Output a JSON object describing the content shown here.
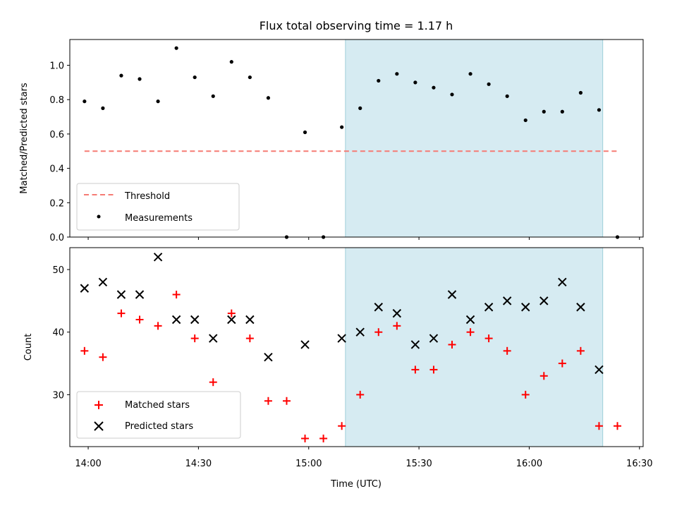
{
  "chart_data": [
    {
      "type": "scatter",
      "title": "Flux total observing time = 1.17 h",
      "xlabel": "",
      "ylabel": "Matched/Predicted stars",
      "xlim": [
        "13:55",
        "16:31"
      ],
      "ylim": [
        0,
        1.15
      ],
      "yticks": [
        "0.0",
        "0.2",
        "0.4",
        "0.6",
        "0.8",
        "1.0"
      ],
      "yticks_values": [
        0,
        0.2,
        0.4,
        0.6,
        0.8,
        1.0
      ],
      "legend_position": "lower-left",
      "shaded_region": {
        "start": "15:10",
        "end": "16:20",
        "color": "#add8e6"
      },
      "threshold": {
        "name": "Threshold",
        "value": 0.5,
        "x_start": "13:59",
        "x_end": "16:24",
        "color": "#f57b74"
      },
      "series": [
        {
          "name": "Measurements",
          "marker": "dot",
          "color": "#000000",
          "x": [
            "13:59",
            "14:04",
            "14:09",
            "14:14",
            "14:19",
            "14:24",
            "14:29",
            "14:34",
            "14:39",
            "14:44",
            "14:49",
            "14:54",
            "14:59",
            "15:04",
            "15:09",
            "15:14",
            "15:19",
            "15:24",
            "15:29",
            "15:34",
            "15:39",
            "15:44",
            "15:49",
            "15:54",
            "15:59",
            "16:04",
            "16:09",
            "16:14",
            "16:19",
            "16:24"
          ],
          "y": [
            0.79,
            0.75,
            0.94,
            0.92,
            0.79,
            1.1,
            0.93,
            0.82,
            1.02,
            0.93,
            0.81,
            0.0,
            0.61,
            0.0,
            0.64,
            0.75,
            0.91,
            0.95,
            0.9,
            0.87,
            0.83,
            0.95,
            0.89,
            0.82,
            0.68,
            0.73,
            0.73,
            0.84,
            0.74,
            0.0
          ]
        }
      ]
    },
    {
      "type": "scatter",
      "title": "",
      "xlabel": "Time (UTC)",
      "ylabel": "Count",
      "xlim": [
        "13:55",
        "16:31"
      ],
      "ylim": [
        21.7,
        53.5
      ],
      "xticks": [
        "14:00",
        "14:30",
        "15:00",
        "15:30",
        "16:00",
        "16:30"
      ],
      "yticks": [
        "30",
        "40",
        "50"
      ],
      "yticks_values": [
        30,
        40,
        50
      ],
      "legend_position": "lower-left",
      "shaded_region": {
        "start": "15:10",
        "end": "16:20",
        "color": "#add8e6"
      },
      "series": [
        {
          "name": "Matched stars",
          "marker": "plus",
          "color": "#ff0000",
          "x": [
            "13:59",
            "14:04",
            "14:09",
            "14:14",
            "14:19",
            "14:24",
            "14:29",
            "14:34",
            "14:39",
            "14:44",
            "14:49",
            "14:54",
            "14:59",
            "15:04",
            "15:09",
            "15:14",
            "15:19",
            "15:24",
            "15:29",
            "15:34",
            "15:39",
            "15:44",
            "15:49",
            "15:54",
            "15:59",
            "16:04",
            "16:09",
            "16:14",
            "16:19",
            "16:24"
          ],
          "y": [
            37,
            36,
            43,
            42,
            41,
            46,
            39,
            32,
            43,
            39,
            29,
            29,
            23,
            23,
            25,
            30,
            40,
            41,
            34,
            34,
            38,
            40,
            39,
            37,
            30,
            33,
            35,
            37,
            25,
            25
          ]
        },
        {
          "name": "Predicted stars",
          "marker": "x",
          "color": "#000000",
          "x": [
            "13:59",
            "14:04",
            "14:09",
            "14:14",
            "14:19",
            "14:24",
            "14:29",
            "14:34",
            "14:39",
            "14:44",
            "14:49",
            "14:59",
            "15:09",
            "15:14",
            "15:19",
            "15:24",
            "15:29",
            "15:34",
            "15:39",
            "15:44",
            "15:49",
            "15:54",
            "15:59",
            "16:04",
            "16:09",
            "16:14",
            "16:19"
          ],
          "y": [
            47,
            48,
            46,
            46,
            52,
            42,
            42,
            39,
            42,
            42,
            36,
            38,
            39,
            40,
            44,
            43,
            38,
            39,
            46,
            42,
            44,
            45,
            44,
            45,
            48,
            44,
            34
          ]
        }
      ]
    }
  ]
}
